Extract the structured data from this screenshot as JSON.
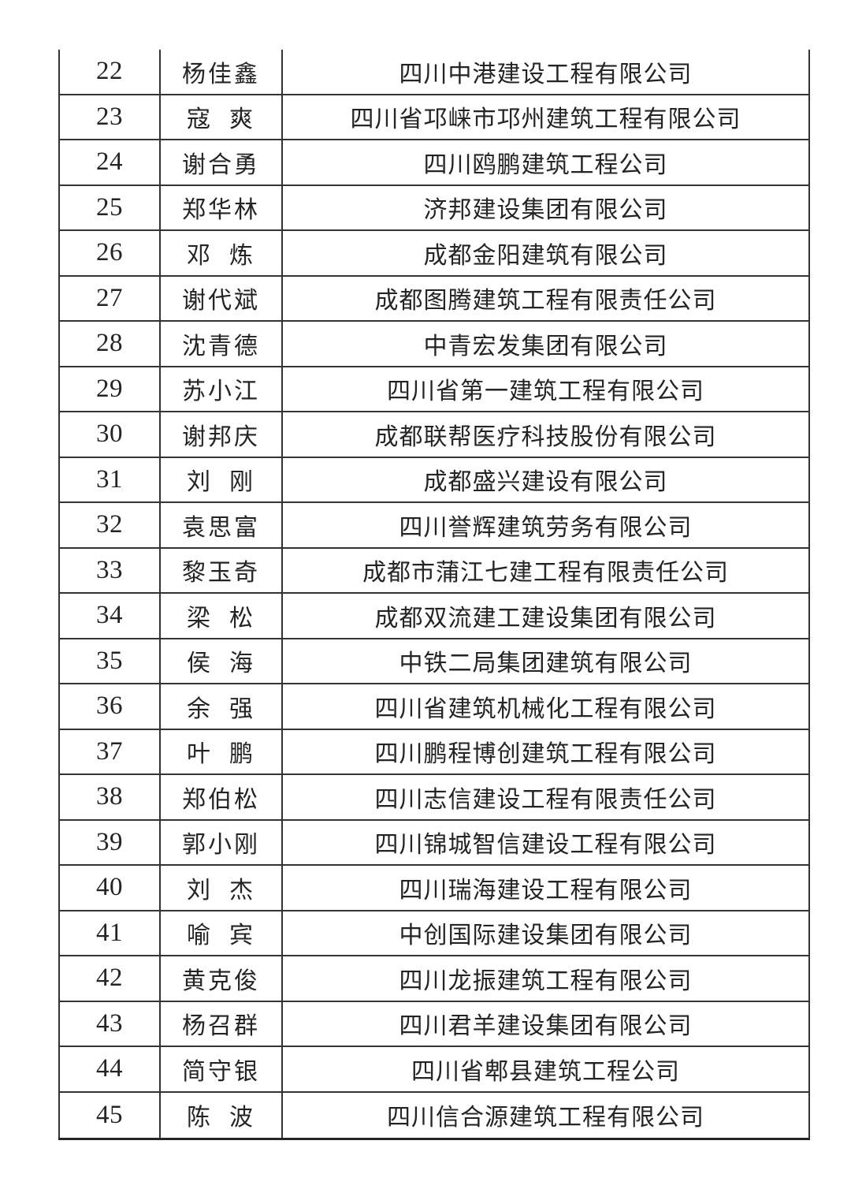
{
  "page": {
    "background_color": "#ffffff",
    "ink_color": "#242424",
    "line_color": "#333333"
  },
  "table": {
    "rows": [
      {
        "no": "22",
        "name": "杨佳鑫",
        "company": "四川中港建设工程有限公司"
      },
      {
        "no": "23",
        "name": "寇  爽",
        "company": "四川省邛崃市邛州建筑工程有限公司"
      },
      {
        "no": "24",
        "name": "谢合勇",
        "company": "四川鸥鹏建筑工程公司"
      },
      {
        "no": "25",
        "name": "郑华林",
        "company": "济邦建设集团有限公司"
      },
      {
        "no": "26",
        "name": "邓  炼",
        "company": "成都金阳建筑有限公司"
      },
      {
        "no": "27",
        "name": "谢代斌",
        "company": "成都图腾建筑工程有限责任公司"
      },
      {
        "no": "28",
        "name": "沈青德",
        "company": "中青宏发集团有限公司"
      },
      {
        "no": "29",
        "name": "苏小江",
        "company": "四川省第一建筑工程有限公司"
      },
      {
        "no": "30",
        "name": "谢邦庆",
        "company": "成都联帮医疗科技股份有限公司"
      },
      {
        "no": "31",
        "name": "刘  刚",
        "company": "成都盛兴建设有限公司"
      },
      {
        "no": "32",
        "name": "袁思富",
        "company": "四川誉辉建筑劳务有限公司"
      },
      {
        "no": "33",
        "name": "黎玉奇",
        "company": "成都市蒲江七建工程有限责任公司"
      },
      {
        "no": "34",
        "name": "梁  松",
        "company": "成都双流建工建设集团有限公司"
      },
      {
        "no": "35",
        "name": "侯  海",
        "company": "中铁二局集团建筑有限公司"
      },
      {
        "no": "36",
        "name": "余  强",
        "company": "四川省建筑机械化工程有限公司"
      },
      {
        "no": "37",
        "name": "叶  鹏",
        "company": "四川鹏程博创建筑工程有限公司"
      },
      {
        "no": "38",
        "name": "郑伯松",
        "company": "四川志信建设工程有限责任公司"
      },
      {
        "no": "39",
        "name": "郭小刚",
        "company": "四川锦城智信建设工程有限公司"
      },
      {
        "no": "40",
        "name": "刘  杰",
        "company": "四川瑞海建设工程有限公司"
      },
      {
        "no": "41",
        "name": "喻  宾",
        "company": "中创国际建设集团有限公司"
      },
      {
        "no": "42",
        "name": "黄克俊",
        "company": "四川龙振建筑工程有限公司"
      },
      {
        "no": "43",
        "name": "杨召群",
        "company": "四川君羊建设集团有限公司"
      },
      {
        "no": "44",
        "name": "简守银",
        "company": "四川省郫县建筑工程公司"
      },
      {
        "no": "45",
        "name": "陈  波",
        "company": "四川信合源建筑工程有限公司"
      }
    ]
  }
}
